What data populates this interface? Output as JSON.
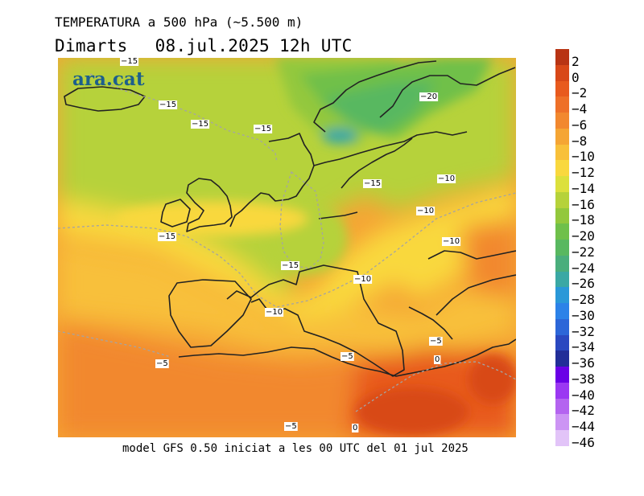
{
  "header": {
    "title": "TEMPERATURA a 500 hPa (~5.500 m)",
    "day": "Dimarts",
    "date": "08.jul.2025",
    "hour": "12h UTC"
  },
  "footer": "model GFS 0.50 iniciat a les 00 UTC del 01 jul 2025",
  "logo": "ara.cat",
  "legend": {
    "unit_values": [
      "2",
      "0",
      "−2",
      "−4",
      "−6",
      "−8",
      "−10",
      "−12",
      "−14",
      "−16",
      "−18",
      "−20",
      "−22",
      "−24",
      "−26",
      "−28",
      "−30",
      "−32",
      "−34",
      "−36",
      "−38",
      "−40",
      "−42",
      "−44",
      "−46"
    ],
    "colors": [
      "#b83414",
      "#d84818",
      "#e85a1e",
      "#ee7028",
      "#f2882e",
      "#f5a534",
      "#f8c03a",
      "#f9d83e",
      "#dce03c",
      "#b6d23a",
      "#93c83c",
      "#6fc04a",
      "#58b860",
      "#4aae7c",
      "#3aa8a4",
      "#2a98d8",
      "#2c82e8",
      "#2c66d8",
      "#2a48c0",
      "#222e98",
      "#6a00e6",
      "#9b38f2",
      "#b464f0",
      "#cc94f4",
      "#e2c4f8"
    ]
  },
  "contour_labels": [
    {
      "text": "−15"
    },
    {
      "text": "−15"
    },
    {
      "text": "−15"
    },
    {
      "text": "−15"
    },
    {
      "text": "−20"
    },
    {
      "text": "−15"
    },
    {
      "text": "−10"
    },
    {
      "text": "−15"
    },
    {
      "text": "−10"
    },
    {
      "text": "−10"
    },
    {
      "text": "−15"
    },
    {
      "text": "−10"
    },
    {
      "text": "−10"
    },
    {
      "text": "−5"
    },
    {
      "text": "−5"
    },
    {
      "text": "−5"
    },
    {
      "text": "0"
    },
    {
      "text": "−5"
    },
    {
      "text": "0"
    }
  ]
}
